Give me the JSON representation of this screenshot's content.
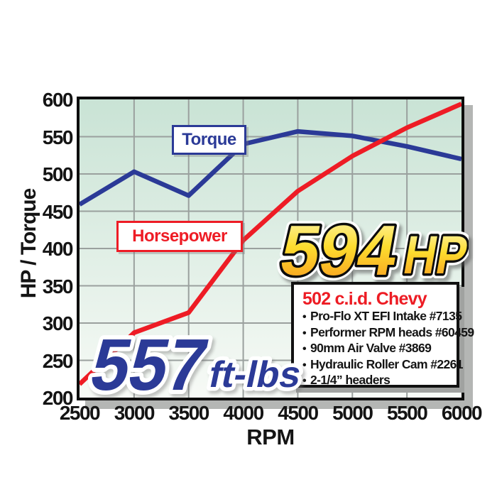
{
  "chart_data": {
    "type": "line",
    "x": [
      2500,
      3000,
      3500,
      4000,
      4500,
      5000,
      5500,
      6000
    ],
    "xlabel": "RPM",
    "ylabel": "HP / Torque",
    "ylim": [
      200,
      600
    ],
    "yticks": [
      200,
      250,
      300,
      350,
      400,
      450,
      500,
      550,
      600
    ],
    "grid": true,
    "legend_position": "inline label boxes on plot",
    "series": [
      {
        "name": "Torque",
        "color": "#2b3a97",
        "values": [
          459,
          503,
          471,
          540,
          557,
          551,
          537,
          520
        ]
      },
      {
        "name": "Horsepower",
        "color": "#ee1c25",
        "values": [
          218,
          287,
          314,
          411,
          477,
          524,
          562,
          594
        ]
      }
    ],
    "annotations": [
      {
        "text": "594 HP",
        "style": "large gold italic, lower right of torque peak"
      },
      {
        "text": "557 ft-lbs",
        "style": "large blue italic, bottom left"
      }
    ]
  },
  "labels": {
    "torque": "Torque",
    "horsepower": "Horsepower",
    "y_axis": "HP / Torque",
    "x_axis": "RPM"
  },
  "annotations": {
    "peak_hp_value": "594",
    "peak_hp_unit": "HP",
    "peak_torque_value": "557",
    "peak_torque_unit": "ft-lbs"
  },
  "info_box": {
    "title": "502 c.i.d. Chevy",
    "bullet": "•",
    "items": [
      "Pro-Flo XT EFI Intake #7135",
      "Performer RPM heads #60459",
      "90mm Air Valve #3869",
      "Hydraulic Roller Cam #2261",
      "2-1/4” headers"
    ]
  },
  "colors": {
    "torque_line": "#2b3a97",
    "horsepower_line": "#ee1c25",
    "plot_bg_top": "#c9e3d5",
    "plot_bg_bottom": "#f7faf6",
    "grid": "#9aa09e",
    "plot_border": "#0d0d0d",
    "gold_top": "#fdf6b8",
    "gold_mid": "#fddc2e",
    "gold_bottom": "#f7941d",
    "info_title": "#ed1c24"
  }
}
